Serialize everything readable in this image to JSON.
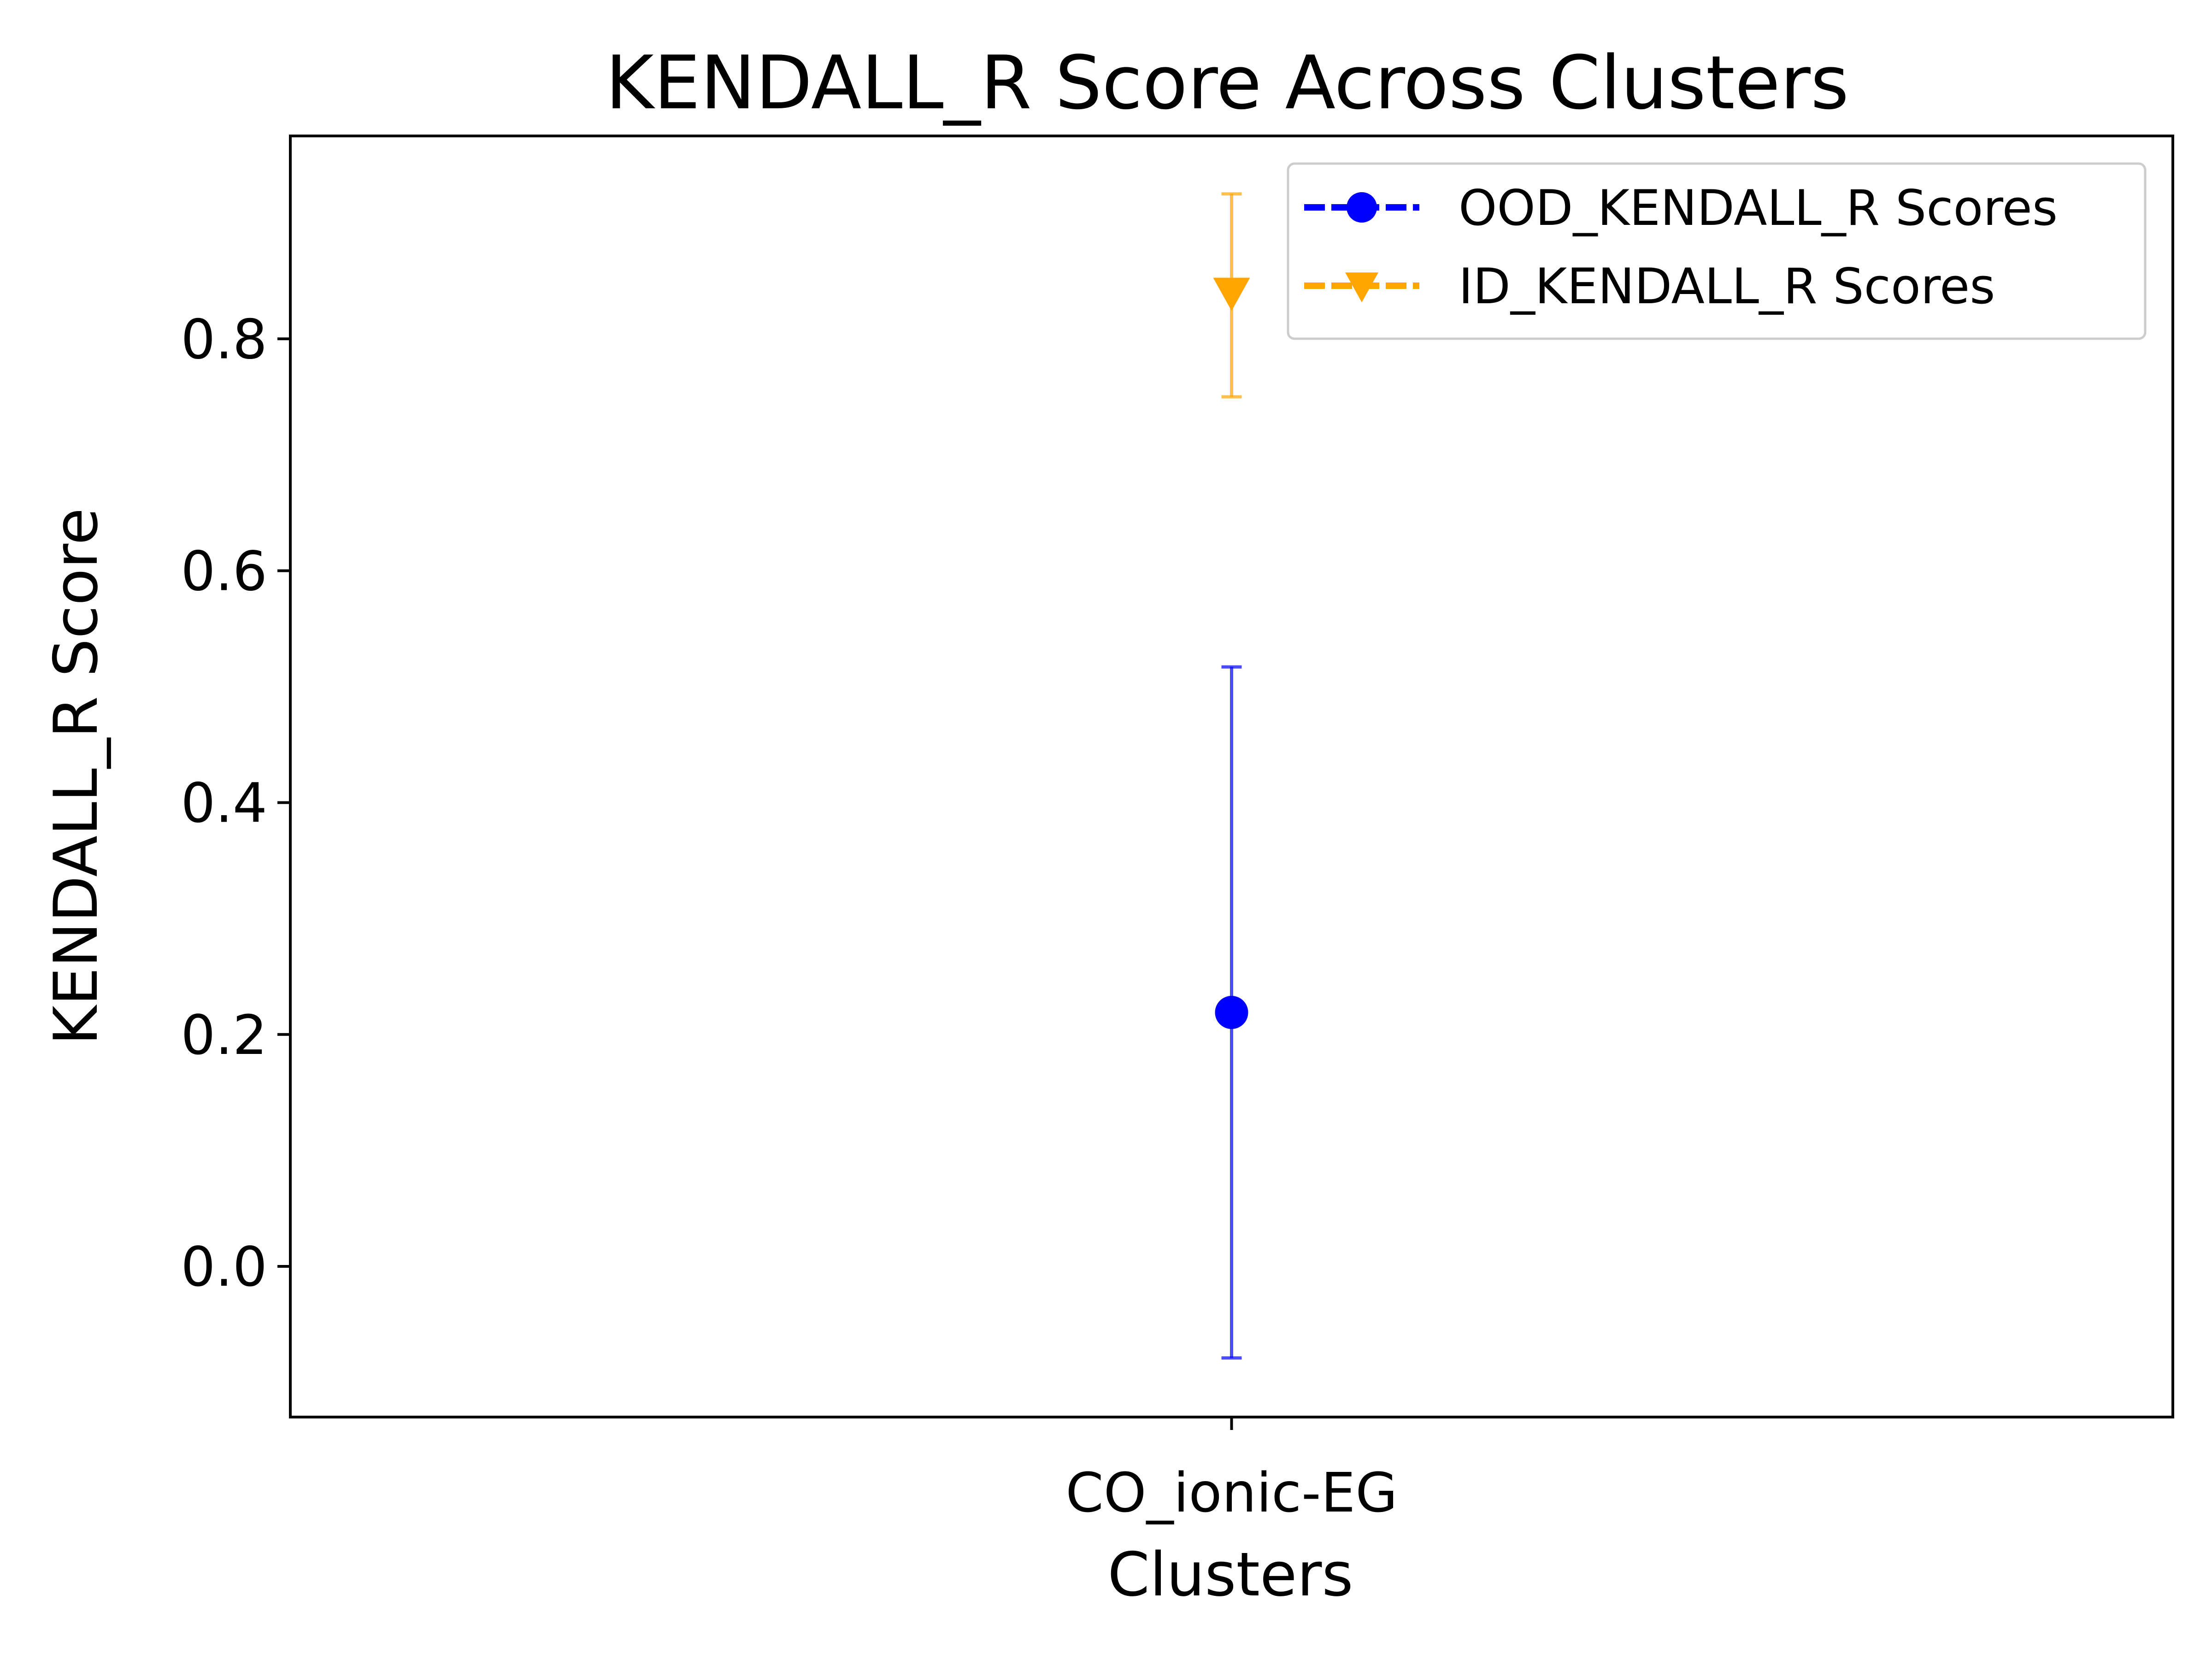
{
  "chart_data": {
    "type": "errorbar",
    "title": "KENDALL_R Score Across Clusters",
    "xlabel": "Clusters",
    "ylabel": "KENDALL_R Score",
    "categories": [
      "CO_ionic-EG"
    ],
    "ylim": [
      -0.13,
      0.975
    ],
    "yticks": [
      0.0,
      0.2,
      0.4,
      0.6,
      0.8
    ],
    "ytick_labels": [
      "0.0",
      "0.2",
      "0.4",
      "0.6",
      "0.8"
    ],
    "grid": false,
    "legend_position": "top-right",
    "series": [
      {
        "name": "OOD_KENDALL_R Scores",
        "marker": "circle",
        "color": "#0000ff",
        "values": [
          0.219
        ],
        "err_low": [
          -0.079
        ],
        "err_high": [
          0.517
        ]
      },
      {
        "name": "ID_KENDALL_R Scores",
        "marker": "triangle-down",
        "color": "#ffa500",
        "values": [
          0.84
        ],
        "err_low": [
          0.75
        ],
        "err_high": [
          0.925
        ]
      }
    ]
  }
}
